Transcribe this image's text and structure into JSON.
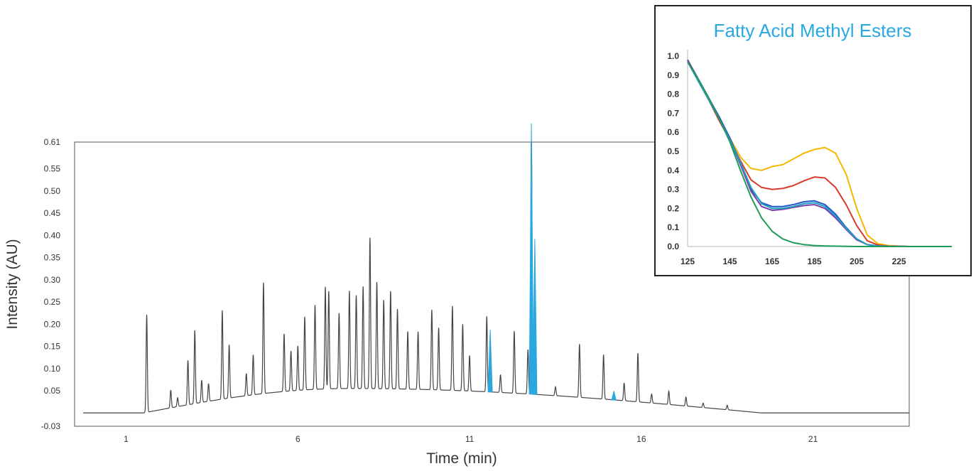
{
  "chart_data": [
    {
      "type": "line",
      "title": "",
      "xlabel": "Time (min)",
      "ylabel": "Intensity (AU)",
      "xlim": [
        -0.5,
        23.8
      ],
      "ylim": [
        -0.03,
        0.61
      ],
      "x_ticks": [
        1,
        6,
        11,
        16,
        21
      ],
      "y_ticks": [
        -0.03,
        0.05,
        0.1,
        0.15,
        0.2,
        0.25,
        0.3,
        0.35,
        0.4,
        0.45,
        0.5,
        0.55,
        0.61
      ],
      "y_tick_labels": [
        "-0.03",
        "0.05",
        "0.10",
        "0.15",
        "0.20",
        "0.25",
        "0.30",
        "0.35",
        "0.40",
        "0.45",
        "0.50",
        "0.55",
        "0.61"
      ],
      "x_tick_labels": [
        "1",
        "6",
        "11",
        "16",
        "21"
      ],
      "baseline": 0.0,
      "hump": {
        "center": 7.5,
        "height": 0.055,
        "rise_start": 1.5,
        "fall_end": 19.5
      },
      "peaks": [
        [
          1.6,
          0.22
        ],
        [
          2.3,
          0.04
        ],
        [
          2.5,
          0.02
        ],
        [
          2.8,
          0.1
        ],
        [
          3.0,
          0.165
        ],
        [
          3.2,
          0.05
        ],
        [
          3.4,
          0.04
        ],
        [
          3.8,
          0.2
        ],
        [
          4.0,
          0.12
        ],
        [
          4.5,
          0.05
        ],
        [
          4.7,
          0.09
        ],
        [
          5.0,
          0.25
        ],
        [
          5.6,
          0.13
        ],
        [
          5.8,
          0.09
        ],
        [
          6.0,
          0.1
        ],
        [
          6.2,
          0.165
        ],
        [
          6.5,
          0.19
        ],
        [
          6.8,
          0.23
        ],
        [
          6.9,
          0.22
        ],
        [
          7.2,
          0.17
        ],
        [
          7.5,
          0.22
        ],
        [
          7.7,
          0.21
        ],
        [
          7.9,
          0.23
        ],
        [
          8.1,
          0.34
        ],
        [
          8.3,
          0.24
        ],
        [
          8.5,
          0.2
        ],
        [
          8.7,
          0.22
        ],
        [
          8.9,
          0.18
        ],
        [
          9.2,
          0.13
        ],
        [
          9.5,
          0.13
        ],
        [
          9.9,
          0.18
        ],
        [
          10.1,
          0.14
        ],
        [
          10.5,
          0.19
        ],
        [
          10.8,
          0.15
        ],
        [
          11.0,
          0.08
        ],
        [
          11.5,
          0.17
        ],
        [
          11.9,
          0.04
        ],
        [
          12.3,
          0.14
        ],
        [
          12.7,
          0.1
        ],
        [
          13.5,
          0.02
        ],
        [
          14.2,
          0.12
        ],
        [
          14.9,
          0.1
        ],
        [
          15.5,
          0.04
        ],
        [
          15.9,
          0.11
        ],
        [
          16.3,
          0.02
        ],
        [
          16.8,
          0.03
        ],
        [
          17.3,
          0.02
        ],
        [
          17.8,
          0.01
        ],
        [
          18.5,
          0.01
        ]
      ],
      "main_peak": {
        "x": 12.8,
        "y": 0.61
      },
      "highlight_peaks": [
        {
          "x": 11.6,
          "y": 0.14
        },
        {
          "x": 12.8,
          "y": 0.61
        },
        {
          "x": 12.9,
          "y": 0.35
        },
        {
          "x": 15.2,
          "y": 0.02
        }
      ],
      "series_color": "#444444",
      "highlight_color": "#29a8e0"
    },
    {
      "type": "line",
      "title": "Fatty Acid Methyl Esters",
      "title_color": "#29a8e0",
      "xlabel": "",
      "ylabel": "",
      "xlim": [
        125,
        250
      ],
      "ylim": [
        0,
        1.0
      ],
      "x_ticks": [
        125,
        145,
        165,
        185,
        205,
        225
      ],
      "x_tick_labels": [
        "125",
        "145",
        "165",
        "185",
        "205",
        "225"
      ],
      "y_ticks": [
        0.0,
        0.1,
        0.2,
        0.3,
        0.4,
        0.5,
        0.6,
        0.7,
        0.8,
        0.9,
        1.0
      ],
      "y_tick_labels": [
        "0.0",
        "0.1",
        "0.2",
        "0.3",
        "0.4",
        "0.5",
        "0.6",
        "0.7",
        "0.8",
        "0.9",
        "1.0"
      ],
      "series": [
        {
          "name": "yellow",
          "color": "#f5b800",
          "x": [
            125,
            130,
            135,
            140,
            145,
            150,
            155,
            160,
            165,
            170,
            175,
            180,
            185,
            190,
            195,
            200,
            205,
            210,
            215,
            220,
            230,
            240,
            250
          ],
          "y": [
            0.98,
            0.87,
            0.77,
            0.67,
            0.57,
            0.47,
            0.41,
            0.4,
            0.42,
            0.43,
            0.46,
            0.49,
            0.51,
            0.52,
            0.49,
            0.38,
            0.2,
            0.06,
            0.015,
            0.005,
            0.0,
            0.0,
            0.0
          ]
        },
        {
          "name": "red",
          "color": "#d93a2b",
          "x": [
            125,
            130,
            135,
            140,
            145,
            150,
            155,
            160,
            165,
            170,
            175,
            180,
            185,
            190,
            195,
            200,
            205,
            210,
            215,
            220,
            230,
            240,
            250
          ],
          "y": [
            0.98,
            0.87,
            0.77,
            0.66,
            0.56,
            0.45,
            0.35,
            0.31,
            0.3,
            0.305,
            0.32,
            0.345,
            0.365,
            0.36,
            0.31,
            0.22,
            0.11,
            0.03,
            0.008,
            0.002,
            0.0,
            0.0,
            0.0
          ]
        },
        {
          "name": "blue",
          "color": "#2456c9",
          "x": [
            125,
            130,
            135,
            140,
            145,
            150,
            155,
            160,
            165,
            170,
            175,
            180,
            185,
            190,
            195,
            200,
            205,
            210,
            215,
            220,
            230,
            240,
            250
          ],
          "y": [
            0.98,
            0.88,
            0.78,
            0.68,
            0.57,
            0.44,
            0.3,
            0.23,
            0.21,
            0.21,
            0.22,
            0.235,
            0.24,
            0.22,
            0.17,
            0.1,
            0.04,
            0.01,
            0.003,
            0.001,
            0.0,
            0.0,
            0.0
          ]
        },
        {
          "name": "purple",
          "color": "#7a3fa8",
          "x": [
            125,
            130,
            135,
            140,
            145,
            150,
            155,
            160,
            165,
            170,
            175,
            180,
            185,
            190,
            195,
            200,
            205,
            210,
            215,
            220,
            230,
            240,
            250
          ],
          "y": [
            0.98,
            0.88,
            0.78,
            0.67,
            0.56,
            0.43,
            0.29,
            0.21,
            0.19,
            0.195,
            0.205,
            0.215,
            0.22,
            0.2,
            0.15,
            0.09,
            0.035,
            0.01,
            0.003,
            0.001,
            0.0,
            0.0,
            0.0
          ]
        },
        {
          "name": "teal",
          "color": "#20a0c0",
          "x": [
            125,
            130,
            135,
            140,
            145,
            150,
            155,
            160,
            165,
            170,
            175,
            180,
            185,
            190,
            195,
            200,
            205,
            210,
            215,
            220,
            230,
            240,
            250
          ],
          "y": [
            0.97,
            0.87,
            0.77,
            0.67,
            0.56,
            0.44,
            0.31,
            0.225,
            0.2,
            0.2,
            0.21,
            0.225,
            0.23,
            0.21,
            0.16,
            0.095,
            0.04,
            0.01,
            0.003,
            0.001,
            0.0,
            0.0,
            0.0
          ]
        },
        {
          "name": "green",
          "color": "#1e9a5a",
          "x": [
            125,
            130,
            135,
            140,
            145,
            150,
            155,
            160,
            165,
            170,
            175,
            180,
            185,
            190,
            195,
            200,
            205,
            210,
            215,
            220,
            230,
            240,
            250
          ],
          "y": [
            0.97,
            0.88,
            0.78,
            0.67,
            0.55,
            0.4,
            0.26,
            0.15,
            0.08,
            0.04,
            0.02,
            0.01,
            0.005,
            0.003,
            0.002,
            0.001,
            0.0,
            0.0,
            0.0,
            0.0,
            0.0,
            0.0,
            0.0
          ]
        }
      ]
    }
  ]
}
